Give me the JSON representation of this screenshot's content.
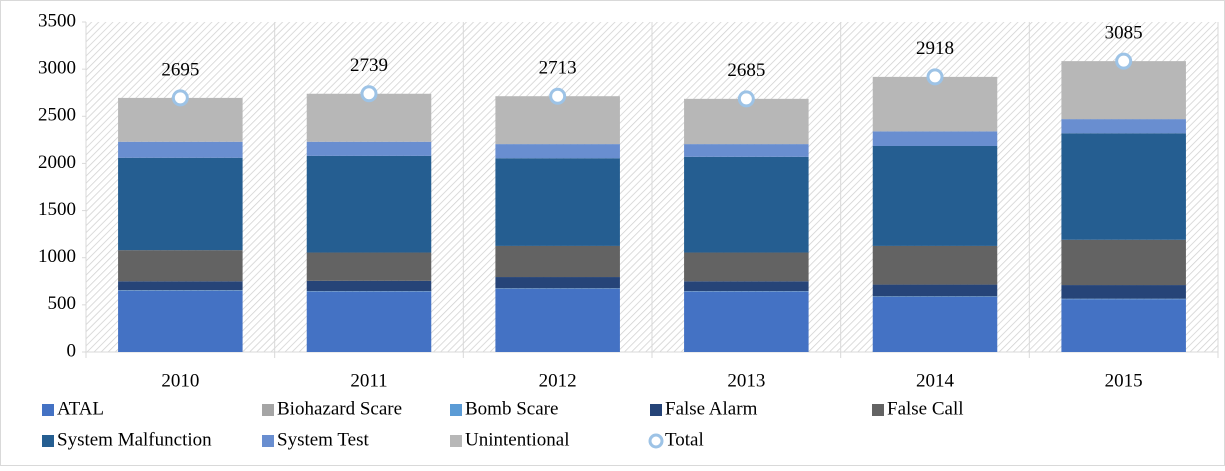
{
  "chart_data": {
    "type": "bar",
    "stacked": true,
    "categories": [
      "2010",
      "2011",
      "2012",
      "2013",
      "2014",
      "2015"
    ],
    "series": [
      {
        "name": "ATAL",
        "color": "#4472c4",
        "values": [
          650,
          640,
          670,
          640,
          585,
          560
        ]
      },
      {
        "name": "Biohazard Scare",
        "color": "#a5a5a5",
        "values": [
          0,
          0,
          0,
          0,
          0,
          0
        ]
      },
      {
        "name": "Bomb Scare",
        "color": "#5b9bd5",
        "values": [
          5,
          5,
          5,
          5,
          5,
          5
        ]
      },
      {
        "name": "False Alarm",
        "color": "#264478",
        "values": [
          95,
          110,
          120,
          105,
          125,
          145
        ]
      },
      {
        "name": "False Call",
        "color": "#636363",
        "values": [
          330,
          300,
          330,
          305,
          410,
          480
        ]
      },
      {
        "name": "System Malfunction",
        "color": "#255e91",
        "values": [
          980,
          1025,
          930,
          1015,
          1060,
          1130
        ]
      },
      {
        "name": "System Test",
        "color": "#698ed0",
        "values": [
          170,
          150,
          150,
          135,
          155,
          150
        ]
      },
      {
        "name": "Unintentional",
        "color": "#b7b7b7",
        "values": [
          465,
          509,
          508,
          480,
          578,
          615
        ]
      },
      {
        "name": "Total",
        "color": "#9dc3e6",
        "type": "marker",
        "values": [
          2695,
          2739,
          2713,
          2685,
          2918,
          3085
        ]
      }
    ],
    "ylim": [
      0,
      3500
    ],
    "yticks": [
      0,
      500,
      1000,
      1500,
      2000,
      2500,
      3000,
      3500
    ],
    "grid": false,
    "legend": "bottom"
  }
}
